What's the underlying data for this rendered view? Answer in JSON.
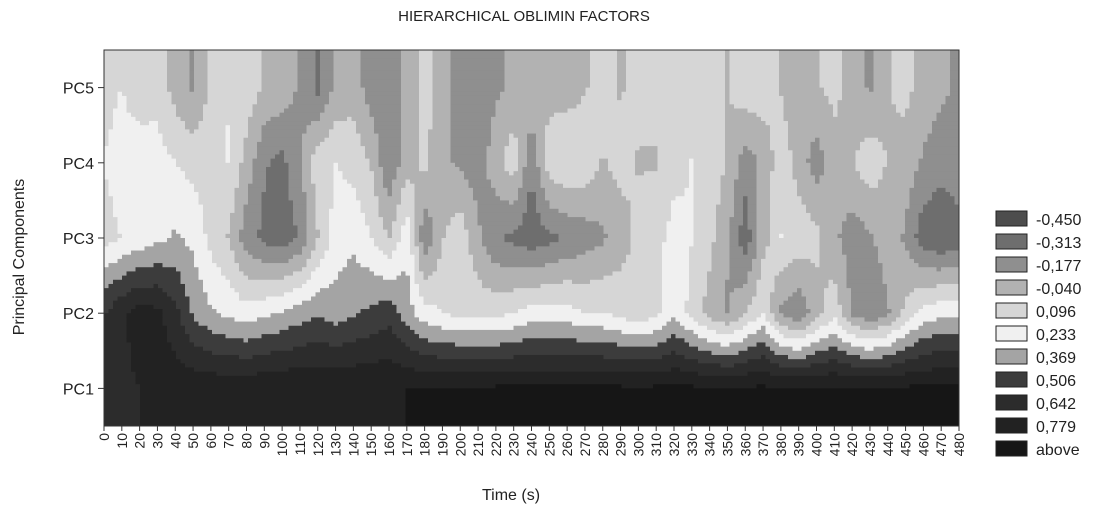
{
  "chart_data": {
    "type": "heatmap",
    "title": "HIERARCHICAL OBLIMIN FACTORS",
    "xlabel": "Time (s)",
    "ylabel": "Principal Components",
    "x_ticks": [
      "0",
      "10",
      "20",
      "30",
      "40",
      "50",
      "60",
      "70",
      "80",
      "90",
      "100",
      "110",
      "120",
      "130",
      "140",
      "150",
      "160",
      "170",
      "180",
      "190",
      "200",
      "210",
      "220",
      "230",
      "240",
      "250",
      "260",
      "270",
      "280",
      "290",
      "300",
      "310",
      "320",
      "330",
      "340",
      "350",
      "360",
      "370",
      "380",
      "390",
      "400",
      "410",
      "420",
      "430",
      "440",
      "450",
      "460",
      "470",
      "480"
    ],
    "y_ticks": [
      "PC1",
      "PC2",
      "PC3",
      "PC4",
      "PC5"
    ],
    "xlim": [
      0,
      480
    ],
    "ylim": [
      0.5,
      5.5
    ],
    "legend": {
      "position": "right",
      "levels": [
        "-0,450",
        "-0,313",
        "-0,177",
        "-0,040",
        "0,096",
        "0,233",
        "0,369",
        "0,506",
        "0,642",
        "0,779",
        "above"
      ],
      "colors": [
        "#4d4d4d",
        "#6e6e6e",
        "#8f8f8f",
        "#b2b2b2",
        "#d6d6d6",
        "#f0f0f0",
        "#a4a4a4",
        "#3c3c3c",
        "#2c2c2c",
        "#222222",
        "#161616"
      ]
    },
    "rows": [
      {
        "component": "PC1",
        "values": [
          0.6,
          0.62,
          0.64,
          0.7,
          0.72,
          0.74,
          0.74,
          0.74,
          0.75,
          0.76,
          0.76,
          0.77,
          0.77,
          0.77,
          0.77,
          0.77,
          0.77,
          0.78,
          0.78,
          0.79,
          0.79,
          0.79,
          0.8,
          0.8,
          0.8,
          0.8,
          0.8,
          0.8,
          0.8,
          0.8,
          0.8,
          0.8,
          0.8,
          0.8,
          0.8,
          0.8,
          0.8,
          0.8,
          0.8,
          0.8,
          0.8,
          0.8,
          0.8,
          0.8,
          0.8,
          0.8,
          0.8,
          0.8,
          0.8
        ]
      },
      {
        "component": "PC2",
        "values": [
          0.5,
          0.62,
          0.7,
          0.68,
          0.55,
          0.35,
          0.25,
          0.2,
          0.15,
          0.2,
          0.25,
          0.3,
          0.35,
          0.3,
          0.35,
          0.4,
          0.45,
          0.3,
          0.15,
          0.1,
          0.05,
          0.05,
          0.05,
          0.1,
          0.15,
          0.15,
          0.15,
          0.1,
          0.1,
          0.05,
          0.0,
          0.05,
          0.2,
          0.05,
          -0.1,
          -0.2,
          -0.05,
          0.1,
          -0.2,
          -0.3,
          -0.1,
          0.05,
          -0.2,
          -0.3,
          -0.2,
          0.0,
          0.15,
          0.2,
          0.2
        ]
      },
      {
        "component": "PC3",
        "values": [
          0.05,
          0.1,
          0.15,
          0.2,
          0.25,
          0.2,
          0.05,
          -0.05,
          -0.25,
          -0.35,
          -0.4,
          -0.3,
          -0.05,
          0.15,
          0.2,
          0.1,
          -0.05,
          0.2,
          -0.3,
          -0.05,
          0.05,
          -0.15,
          -0.3,
          -0.35,
          -0.4,
          -0.35,
          -0.3,
          -0.25,
          -0.2,
          -0.1,
          0.0,
          0.05,
          0.15,
          0.1,
          0.0,
          -0.15,
          -0.4,
          -0.1,
          0.1,
          0.05,
          0.0,
          -0.15,
          -0.25,
          -0.2,
          -0.1,
          -0.2,
          -0.4,
          -0.45,
          -0.4
        ]
      },
      {
        "component": "PC4",
        "values": [
          0.1,
          0.15,
          0.2,
          0.15,
          0.1,
          0.05,
          0.05,
          0.1,
          -0.1,
          -0.3,
          -0.35,
          -0.2,
          0.05,
          0.1,
          0.05,
          -0.05,
          -0.3,
          -0.1,
          0.0,
          -0.15,
          -0.2,
          -0.25,
          -0.1,
          0.05,
          -0.3,
          0.05,
          0.1,
          0.05,
          -0.05,
          0.0,
          -0.05,
          -0.05,
          0.05,
          0.1,
          0.05,
          -0.05,
          -0.25,
          -0.15,
          0.05,
          -0.1,
          -0.25,
          -0.1,
          -0.05,
          0.05,
          -0.05,
          -0.1,
          -0.2,
          -0.25,
          -0.2
        ]
      },
      {
        "component": "PC5",
        "values": [
          0.05,
          0.1,
          0.0,
          0.05,
          -0.1,
          -0.2,
          0.0,
          0.1,
          0.05,
          -0.05,
          -0.1,
          -0.2,
          -0.35,
          -0.15,
          -0.1,
          -0.25,
          -0.3,
          -0.1,
          0.0,
          -0.1,
          -0.25,
          -0.3,
          -0.2,
          -0.15,
          -0.05,
          -0.1,
          -0.1,
          -0.05,
          0.0,
          -0.05,
          0.0,
          0.0,
          0.05,
          0.05,
          0.0,
          -0.05,
          0.05,
          0.05,
          -0.05,
          -0.15,
          -0.05,
          0.0,
          -0.1,
          -0.2,
          -0.05,
          0.0,
          -0.1,
          -0.15,
          -0.2
        ]
      }
    ]
  }
}
